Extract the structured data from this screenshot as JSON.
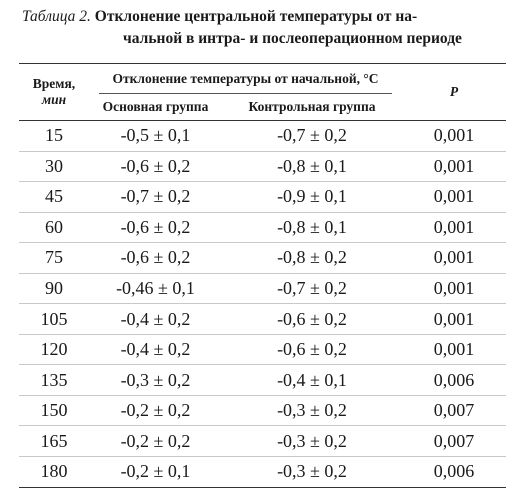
{
  "caption": {
    "label": "Таблица 2.",
    "title_line1": "Отклонение центральной температуры от на-",
    "title_line2": "чальной в интра- и послеоперационном периоде"
  },
  "table": {
    "headers": {
      "time": "Время,",
      "time_unit": "мин",
      "group_header": "Отклонение температуры от начальной, °С",
      "main_group": "Основная группа",
      "control_group": "Контрольная группа",
      "p": "P"
    },
    "rows": [
      {
        "time": "15",
        "main": "-0,5 ± 0,1",
        "control": "-0,7 ± 0,2",
        "p": "0,001"
      },
      {
        "time": "30",
        "main": "-0,6 ± 0,2",
        "control": "-0,8 ± 0,1",
        "p": "0,001"
      },
      {
        "time": "45",
        "main": "-0,7 ± 0,2",
        "control": "-0,9 ± 0,1",
        "p": "0,001"
      },
      {
        "time": "60",
        "main": "-0,6 ± 0,2",
        "control": "-0,8 ± 0,1",
        "p": "0,001"
      },
      {
        "time": "75",
        "main": "-0,6 ± 0,2",
        "control": "-0,8 ± 0,2",
        "p": "0,001"
      },
      {
        "time": "90",
        "main": "-0,46 ± 0,1",
        "control": "-0,7 ± 0,2",
        "p": "0,001"
      },
      {
        "time": "105",
        "main": "-0,4 ± 0,2",
        "control": "-0,6 ± 0,2",
        "p": "0,001"
      },
      {
        "time": "120",
        "main": "-0,4 ± 0,2",
        "control": "-0,6 ± 0,2",
        "p": "0,001"
      },
      {
        "time": "135",
        "main": "-0,3 ± 0,2",
        "control": "-0,4 ± 0,1",
        "p": "0,006"
      },
      {
        "time": "150",
        "main": "-0,2 ± 0,2",
        "control": "-0,3 ± 0,2",
        "p": "0,007"
      },
      {
        "time": "165",
        "main": "-0,2 ± 0,2",
        "control": "-0,3 ± 0,2",
        "p": "0,007"
      },
      {
        "time": "180",
        "main": "-0,2 ± 0,1",
        "control": "-0,3 ± 0,2",
        "p": "0,006"
      }
    ]
  }
}
